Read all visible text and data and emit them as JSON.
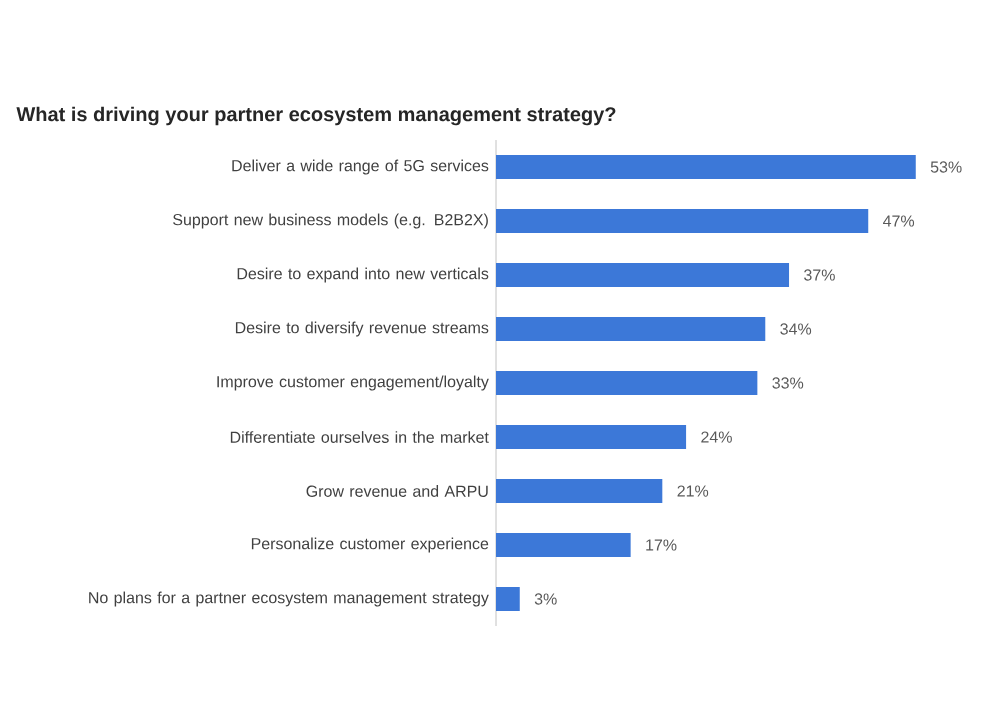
{
  "chart_data": {
    "type": "bar",
    "orientation": "horizontal",
    "title": "What is driving your partner ecosystem management strategy?",
    "categories": [
      "Deliver a wide range of 5G services",
      "Support new business models (e.g. B2B2X)",
      "Desire to expand into new verticals",
      "Desire to diversify revenue streams",
      "Improve customer engagement/loyalty",
      "Differentiate ourselves in the market",
      "Grow revenue and ARPU",
      "Personalize customer experience",
      "No plans for a partner ecosystem management strategy"
    ],
    "values": [
      53,
      47,
      37,
      34,
      33,
      24,
      21,
      17,
      3
    ],
    "value_labels": [
      "53%",
      "47%",
      "37%",
      "34%",
      "33%",
      "24%",
      "21%",
      "17%",
      "3%"
    ],
    "color": "#3c78d8"
  }
}
